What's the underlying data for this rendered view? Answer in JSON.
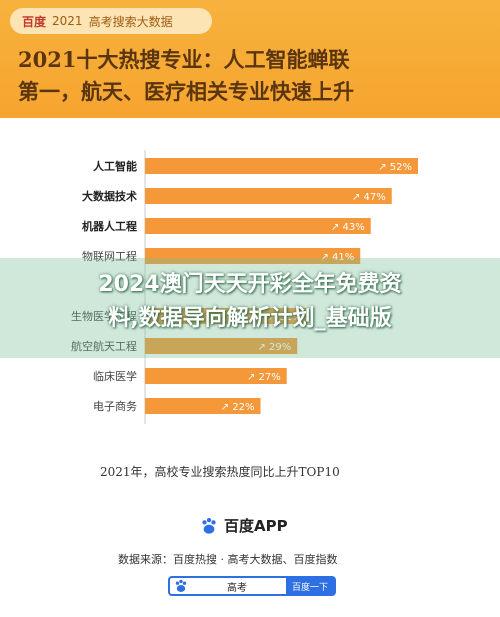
{
  "header": {
    "tag_brand": "百度",
    "tag_year": "2021",
    "tag_text": "高考搜索大数据",
    "title_line1": "2021十大热搜专业：人工智能蝉联",
    "title_line2": "第一，航天、医疗相关专业快速上升"
  },
  "overlay": {
    "line1": "2024澳门天天开彩全年免费资",
    "line2": "料,数据导向解析计划_基础版"
  },
  "chart_data": {
    "type": "bar",
    "orientation": "horizontal",
    "categories": [
      "人工智能",
      "大数据技术",
      "机器人工程",
      "物联网工程",
      "",
      "生物医学工程",
      "航空航天工程",
      "临床医学",
      "电子商务"
    ],
    "values": [
      52,
      47,
      43,
      41,
      null,
      31,
      29,
      27,
      22
    ],
    "labels": [
      "52%",
      "47%",
      "43%",
      "41%",
      "",
      "31%",
      "29%",
      "27%",
      "22%"
    ],
    "bar_color": "#f5983a",
    "caption": "2021年，高校专业搜索热度同比上升TOP10",
    "xlim": [
      0,
      60
    ]
  },
  "footer": {
    "app_name": "百度APP",
    "source": "数据来源：百度热搜 · 高考大数据、百度指数",
    "search_query": "高考",
    "search_button": "百度一下"
  }
}
